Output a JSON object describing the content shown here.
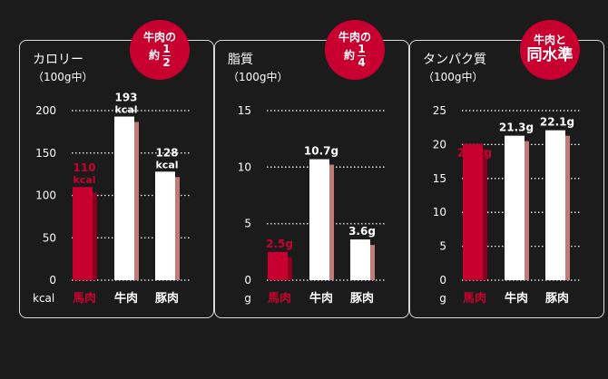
{
  "colors": {
    "background": "#1c1b1c",
    "beef": "#c8002f",
    "beef_shadow": "#8a0020",
    "other": "#ffffff",
    "other_shadow": "#c07a78",
    "badge": "#c8002f"
  },
  "panels": [
    {
      "title": "カロリー",
      "unit_line": "（100g中）",
      "axis_unit": "kcal",
      "badge": {
        "line1": "牛肉の",
        "prefix": "約",
        "numerator": "1",
        "denominator": "2"
      }
    },
    {
      "title": "脂質",
      "unit_line": "（100g中）",
      "axis_unit": "g",
      "badge": {
        "line1": "牛肉の",
        "prefix": "約",
        "numerator": "1",
        "denominator": "4"
      }
    },
    {
      "title": "タンパク質",
      "unit_line": "（100g中）",
      "axis_unit": "g",
      "badge": {
        "line1": "牛肉と",
        "line2": "同水準"
      }
    }
  ],
  "chart_data": [
    {
      "type": "bar",
      "title": "カロリー",
      "ylabel": "kcal",
      "ylim": [
        0,
        200
      ],
      "yticks": [
        0,
        50,
        100,
        150,
        200
      ],
      "grid": true,
      "categories": [
        "馬肉",
        "牛肉",
        "豚肉"
      ],
      "values": [
        110,
        193,
        128
      ],
      "data_labels": [
        [
          "110",
          "kcal"
        ],
        [
          "193",
          "kcal"
        ],
        [
          "128",
          "kcal"
        ]
      ]
    },
    {
      "type": "bar",
      "title": "脂質",
      "ylabel": "g",
      "ylim": [
        0,
        15
      ],
      "yticks": [
        0,
        5,
        10,
        15
      ],
      "grid": true,
      "categories": [
        "馬肉",
        "牛肉",
        "豚肉"
      ],
      "values": [
        2.5,
        10.7,
        3.6
      ],
      "data_labels": [
        [
          "2.5g"
        ],
        [
          "10.7g"
        ],
        [
          "3.6g"
        ]
      ]
    },
    {
      "type": "bar",
      "title": "タンパク質",
      "ylabel": "g",
      "ylim": [
        0,
        25
      ],
      "yticks": [
        0,
        5,
        10,
        15,
        20,
        25
      ],
      "grid": true,
      "categories": [
        "馬肉",
        "牛肉",
        "豚肉"
      ],
      "values": [
        20.1,
        21.3,
        22.1
      ],
      "data_labels": [
        [
          "20.1g"
        ],
        [
          "21.3g"
        ],
        [
          "22.1g"
        ]
      ]
    }
  ]
}
